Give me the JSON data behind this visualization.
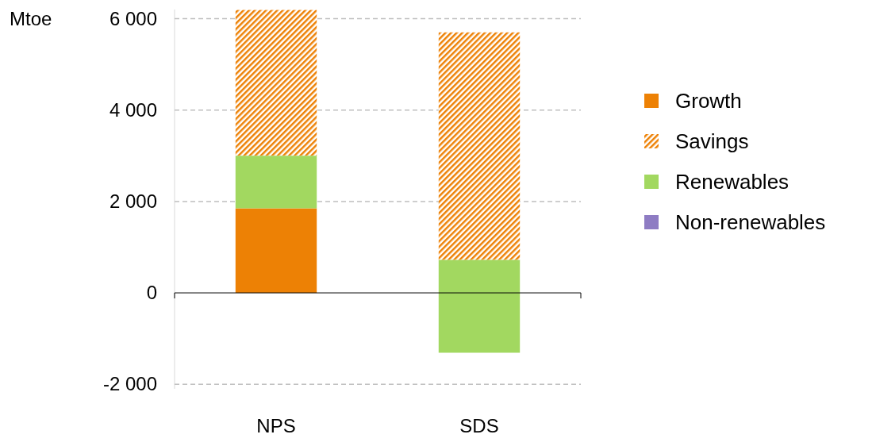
{
  "chart_data": {
    "type": "bar",
    "ylabel": "Mtoe",
    "categories": [
      "NPS",
      "SDS"
    ],
    "series": [
      {
        "name": "Growth",
        "color": "#ed8105",
        "values": [
          1850,
          null
        ],
        "base": [
          0,
          null
        ]
      },
      {
        "name": "Savings",
        "color": "#ed8105",
        "values": [
          3190,
          4980
        ],
        "base": [
          3000,
          720
        ]
      },
      {
        "name": "Renewables",
        "color": "#a2d860",
        "values": [
          1150,
          2030
        ],
        "base": [
          1850,
          -1310
        ]
      },
      {
        "name": "Non-renewables",
        "color": "#8e7cc3",
        "values": [
          null,
          null
        ],
        "base": [
          null,
          null
        ]
      }
    ],
    "ylim": [
      -2100,
      6200
    ],
    "yticks": [
      {
        "value": -2000,
        "label": "-2 000"
      },
      {
        "value": 0,
        "label": "0"
      },
      {
        "value": 2000,
        "label": "2 000"
      },
      {
        "value": 4000,
        "label": "4 000"
      },
      {
        "value": 6000,
        "label": "6 000"
      }
    ],
    "grid": "y",
    "legend": "right"
  }
}
